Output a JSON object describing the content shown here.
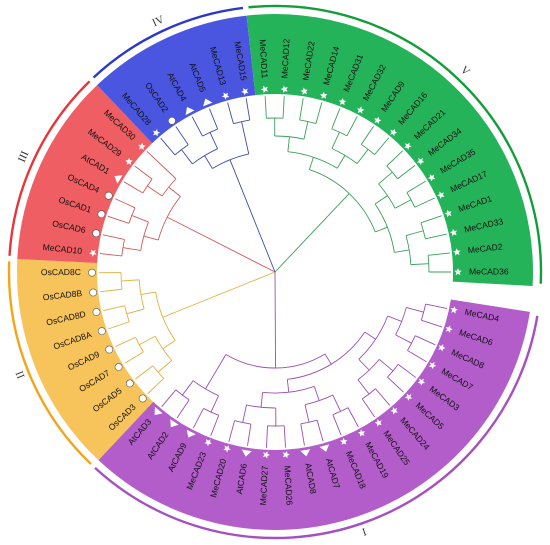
{
  "groups": [
    {
      "label": "I",
      "color": "#a64fc0",
      "fill": "#b25dca",
      "branch": "#9b4fb0"
    },
    {
      "label": "II",
      "color": "#f2a51a",
      "fill": "#f7c45c",
      "branch": "#e0b040"
    },
    {
      "label": "III",
      "color": "#e8353b",
      "fill": "#ee5e62",
      "branch": "#d15a5a"
    },
    {
      "label": "IV",
      "color": "#2d39c6",
      "fill": "#4a56e0",
      "branch": "#3f4fa8"
    },
    {
      "label": "V",
      "color": "#139c3a",
      "fill": "#25b35a",
      "branch": "#3c9f5a"
    }
  ],
  "leaves": [
    {
      "name": "MeCAD4",
      "group": 0,
      "marker": "star"
    },
    {
      "name": "MeCAD6",
      "group": 0,
      "marker": "star"
    },
    {
      "name": "MeCAD8",
      "group": 0,
      "marker": "star"
    },
    {
      "name": "MeCAD7",
      "group": 0,
      "marker": "star"
    },
    {
      "name": "MeCAD3",
      "group": 0,
      "marker": "star"
    },
    {
      "name": "MeCAD5",
      "group": 0,
      "marker": "star"
    },
    {
      "name": "MeCAD24",
      "group": 0,
      "marker": "star"
    },
    {
      "name": "MeCAD25",
      "group": 0,
      "marker": "star"
    },
    {
      "name": "MeCAD19",
      "group": 0,
      "marker": "star"
    },
    {
      "name": "MeCAD18",
      "group": 0,
      "marker": "star"
    },
    {
      "name": "AtCAD7",
      "group": 0,
      "marker": "triangle"
    },
    {
      "name": "AtCAD8",
      "group": 0,
      "marker": "triangle"
    },
    {
      "name": "MeCAD26",
      "group": 0,
      "marker": "star"
    },
    {
      "name": "MeCAD27",
      "group": 0,
      "marker": "star"
    },
    {
      "name": "AtCAD6",
      "group": 0,
      "marker": "triangle"
    },
    {
      "name": "MeCAD20",
      "group": 0,
      "marker": "star"
    },
    {
      "name": "MeCAD23",
      "group": 0,
      "marker": "star"
    },
    {
      "name": "AtCAD9",
      "group": 0,
      "marker": "triangle"
    },
    {
      "name": "AtCAD2",
      "group": 0,
      "marker": "triangle"
    },
    {
      "name": "AtCAD3",
      "group": 0,
      "marker": "triangle"
    },
    {
      "name": "OsCAD3",
      "group": 1,
      "marker": "circle"
    },
    {
      "name": "OsCAD5",
      "group": 1,
      "marker": "circle"
    },
    {
      "name": "OsCAD7",
      "group": 1,
      "marker": "circle"
    },
    {
      "name": "OsCAD9",
      "group": 1,
      "marker": "circle"
    },
    {
      "name": "OsCAD8A",
      "group": 1,
      "marker": "circle"
    },
    {
      "name": "OsCAD8D",
      "group": 1,
      "marker": "circle"
    },
    {
      "name": "OsCAD8B",
      "group": 1,
      "marker": "circle"
    },
    {
      "name": "OsCAD8C",
      "group": 1,
      "marker": "circle"
    },
    {
      "name": "MeCAD10",
      "group": 2,
      "marker": "star"
    },
    {
      "name": "OsCAD6",
      "group": 2,
      "marker": "circle"
    },
    {
      "name": "OsCAD1",
      "group": 2,
      "marker": "circle"
    },
    {
      "name": "OsCAD4",
      "group": 2,
      "marker": "circle"
    },
    {
      "name": "AtCAD1",
      "group": 2,
      "marker": "triangle"
    },
    {
      "name": "MeCAD29",
      "group": 2,
      "marker": "star"
    },
    {
      "name": "MeCAD30",
      "group": 2,
      "marker": "star"
    },
    {
      "name": "MeCAD28",
      "group": 3,
      "marker": "star"
    },
    {
      "name": "OsCAD2",
      "group": 3,
      "marker": "circle"
    },
    {
      "name": "AtCAD4",
      "group": 3,
      "marker": "triangle"
    },
    {
      "name": "AtCAD5",
      "group": 3,
      "marker": "triangle"
    },
    {
      "name": "MeCAD13",
      "group": 3,
      "marker": "star"
    },
    {
      "name": "MeCAD15",
      "group": 3,
      "marker": "star"
    },
    {
      "name": "MeCAD11",
      "group": 4,
      "marker": "star"
    },
    {
      "name": "MeCAD12",
      "group": 4,
      "marker": "star"
    },
    {
      "name": "MeCAD22",
      "group": 4,
      "marker": "star"
    },
    {
      "name": "MeCAD14",
      "group": 4,
      "marker": "star"
    },
    {
      "name": "MeCAD31",
      "group": 4,
      "marker": "star"
    },
    {
      "name": "MeCAD32",
      "group": 4,
      "marker": "star"
    },
    {
      "name": "MeCAD9",
      "group": 4,
      "marker": "star"
    },
    {
      "name": "MeCAD16",
      "group": 4,
      "marker": "star"
    },
    {
      "name": "MeCAD21",
      "group": 4,
      "marker": "star"
    },
    {
      "name": "MeCAD34",
      "group": 4,
      "marker": "star"
    },
    {
      "name": "MeCAD35",
      "group": 4,
      "marker": "star"
    },
    {
      "name": "MeCAD17",
      "group": 4,
      "marker": "star"
    },
    {
      "name": "MeCAD1",
      "group": 4,
      "marker": "star"
    },
    {
      "name": "MeCAD33",
      "group": 4,
      "marker": "star"
    },
    {
      "name": "MeCAD2",
      "group": 4,
      "marker": "star"
    },
    {
      "name": "MeCAD36",
      "group": 4,
      "marker": "star"
    }
  ]
}
